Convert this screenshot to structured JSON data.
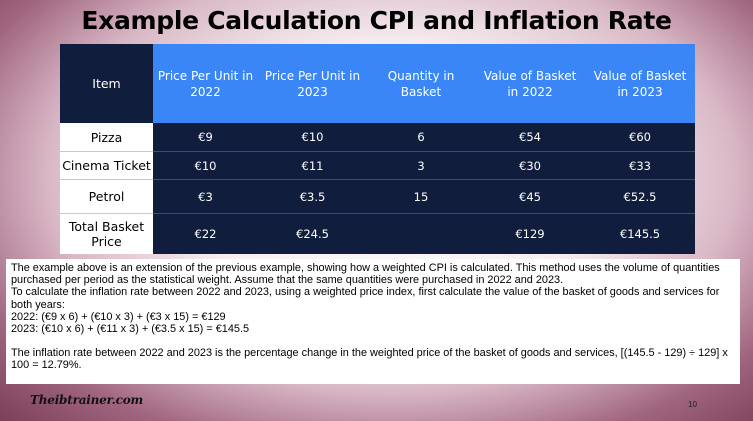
{
  "title": "Example Calculation CPI and Inflation Rate",
  "table": {
    "headers": [
      "Item",
      "Price Per Unit in 2022",
      "Price Per Unit in 2023",
      "Quantity in Basket",
      "Value of Basket in 2022",
      "Value of Basket in 2023"
    ],
    "rows": [
      {
        "item": "Pizza",
        "p2022": "€9",
        "p2023": "€10",
        "qty": "6",
        "v2022": "€54",
        "v2023": "€60"
      },
      {
        "item": "Cinema Ticket",
        "p2022": "€10",
        "p2023": "€11",
        "qty": "3",
        "v2022": "€30",
        "v2023": "€33"
      },
      {
        "item": "Petrol",
        "p2022": "€3",
        "p2023": "€3.5",
        "qty": "15",
        "v2022": "€45",
        "v2023": "€52.5"
      },
      {
        "item": "Total Basket Price",
        "p2022": "€22",
        "p2023": "€24.5",
        "qty": "",
        "v2022": "€129",
        "v2023": "€145.5"
      }
    ]
  },
  "explanation": {
    "line1": "The example above is an extension of the previous example, showing how a weighted CPI is calculated. This method uses the volume of quantities purchased per period as the statistical weight. Assume that the same quantities were purchased in 2022 and 2023.",
    "line2": "To calculate the inflation rate between 2022 and 2023, using a weighted price index, first calculate the value of the basket of goods and services for both years:",
    "line3": "2022: (€9 x 6) + (€10 x 3) + (€3 x 15) = €129",
    "line4": "2023: (€10 x 6) + (€11 x 3) + (€3.5 x 15) = €145.5",
    "line5": "The inflation rate between 2022 and 2023 is the percentage change in the weighted price of the basket of goods and services, [(145.5 - 129) ÷ 129] x 100 = 12.79%."
  },
  "footer": {
    "logo": "Theibtrainer.com",
    "page_number": "10"
  }
}
